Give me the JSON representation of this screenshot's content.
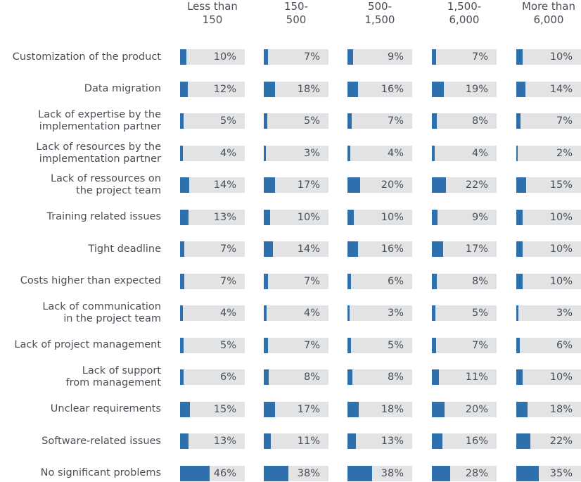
{
  "chart_data": {
    "type": "bar",
    "orientation": "horizontal",
    "layout": "small-multiples-table",
    "columns": [
      "Less than\n150",
      "150-\n500",
      "500-\n1,500",
      "1,500-\n6,000",
      "More than\n6,000"
    ],
    "categories": [
      "Customization of the product",
      "Data migration",
      "Lack of expertise by the\nimplementation partner",
      "Lack of resources by the\nimplementation partner",
      "Lack of ressources on\nthe project team",
      "Training related issues",
      "Tight deadline",
      "Costs higher than expected",
      "Lack of communication\nin the project team",
      "Lack of project management",
      "Lack of support\nfrom management",
      "Unclear requirements",
      "Software-related issues",
      "No significant problems"
    ],
    "values": [
      [
        10,
        7,
        9,
        7,
        10
      ],
      [
        12,
        18,
        16,
        19,
        14
      ],
      [
        5,
        5,
        7,
        8,
        7
      ],
      [
        4,
        3,
        4,
        4,
        2
      ],
      [
        14,
        17,
        20,
        22,
        15
      ],
      [
        13,
        10,
        10,
        9,
        10
      ],
      [
        7,
        14,
        16,
        17,
        10
      ],
      [
        7,
        7,
        6,
        8,
        10
      ],
      [
        4,
        4,
        3,
        5,
        3
      ],
      [
        5,
        7,
        5,
        7,
        6
      ],
      [
        6,
        8,
        8,
        11,
        10
      ],
      [
        15,
        17,
        18,
        20,
        18
      ],
      [
        13,
        11,
        13,
        16,
        22
      ],
      [
        46,
        38,
        38,
        28,
        35
      ]
    ],
    "value_suffix": "%",
    "xlim": [
      0,
      100
    ],
    "grid": false,
    "colors": {
      "bar": "#2e70ae",
      "track": "#e2e3e5",
      "text": "#4a4f57"
    }
  }
}
